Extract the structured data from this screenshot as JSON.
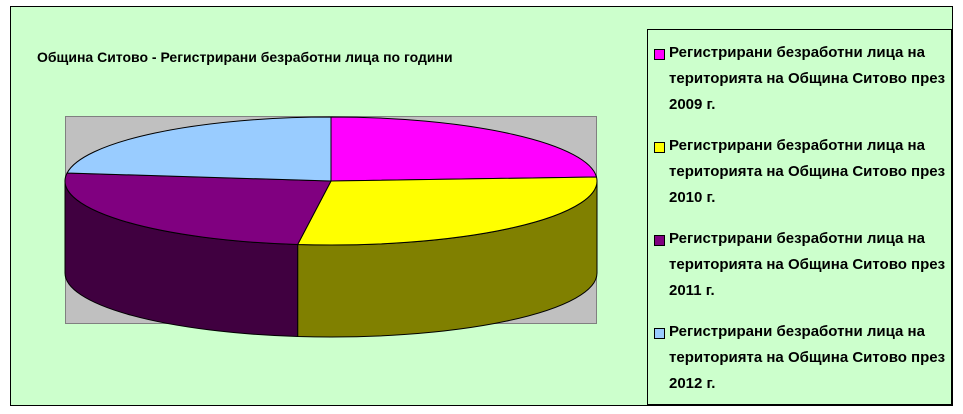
{
  "chart_data": {
    "type": "pie",
    "title": "Община Ситово - Регистрирани безработни лица по години",
    "labels": [
      "Регистрирани безработни лица на територията на Община Ситово през 2009 г.",
      "Регистрирани безработни лица на територията на Община Ситово през 2010 г.",
      "Регистрирани безработни лица на територията на Община Ситово през 2011 г.",
      "Регистрирани безработни лица на територията на Община Ситово през 2012 г."
    ],
    "values": [
      24,
      28,
      25,
      23
    ],
    "colors": [
      "#ff00ff",
      "#ffff00",
      "#800080",
      "#99ccff"
    ],
    "legend_position": "right"
  }
}
